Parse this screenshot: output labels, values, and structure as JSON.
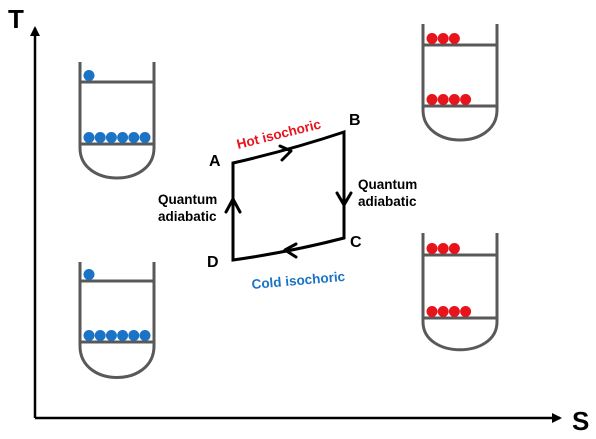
{
  "axes": {
    "y_label": "T",
    "x_label": "S"
  },
  "points": {
    "a": "A",
    "b": "B",
    "c": "C",
    "d": "D"
  },
  "processes": {
    "hot": "Hot isochoric",
    "cold": "Cold isochoric",
    "adiabatic_left_line1": "Quantum",
    "adiabatic_left_line2": "adiabatic",
    "adiabatic_right_line1": "Quantum",
    "adiabatic_right_line2": "adiabatic"
  },
  "colors": {
    "hot": "#e8141c",
    "cold": "#1a73c4",
    "well": "#595959",
    "cycle": "#000000"
  },
  "wells": {
    "top_left": {
      "upper_level_particles": 1,
      "lower_level_particles": 6,
      "color": "cold"
    },
    "bottom_left": {
      "upper_level_particles": 1,
      "lower_level_particles": 6,
      "color": "cold"
    },
    "top_right": {
      "upper_level_particles": 3,
      "lower_level_particles": 4,
      "color": "hot"
    },
    "bottom_right": {
      "upper_level_particles": 3,
      "lower_level_particles": 4,
      "color": "hot"
    }
  }
}
